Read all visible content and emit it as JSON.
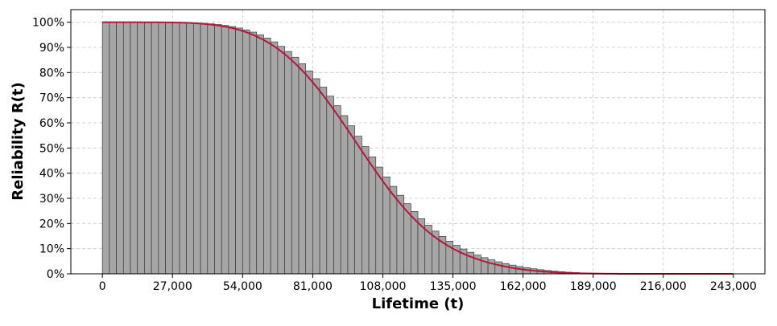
{
  "chart_data": {
    "type": "bar",
    "title": "",
    "xlabel": "Lifetime (t)",
    "ylabel": "Reliability R(t)",
    "xlim": [
      -12150,
      255150
    ],
    "ylim": [
      0,
      1.05
    ],
    "x_ticks": [
      0,
      27000,
      54000,
      81000,
      108000,
      135000,
      162000,
      189000,
      216000,
      243000
    ],
    "x_tick_labels": [
      "0",
      "27,000",
      "54,000",
      "81,000",
      "108,000",
      "135,000",
      "162,000",
      "189,000",
      "216,000",
      "243,000"
    ],
    "y_ticks": [
      0,
      0.1,
      0.2,
      0.3,
      0.4,
      0.5,
      0.6,
      0.7,
      0.8,
      0.9,
      1.0
    ],
    "y_tick_labels": [
      "0%",
      "10%",
      "20%",
      "30%",
      "40%",
      "50%",
      "60%",
      "70%",
      "80%",
      "90%",
      "100%"
    ],
    "grid": true,
    "bar_series": {
      "name": "",
      "bin_width": 2700,
      "x": [
        0,
        2700,
        5400,
        8100,
        10800,
        13500,
        16200,
        18900,
        21600,
        24300,
        27000,
        29700,
        32400,
        35100,
        37800,
        40500,
        43200,
        45900,
        48600,
        51300,
        54000,
        56700,
        59400,
        62100,
        64800,
        67500,
        70200,
        72900,
        75600,
        78300,
        81000,
        83700,
        86400,
        89100,
        91800,
        94500,
        97200,
        99900,
        102600,
        105300,
        108000,
        110700,
        113400,
        116100,
        118800,
        121500,
        124200,
        126900,
        129600,
        132300,
        135000,
        137700,
        140400,
        143100,
        145800,
        148500,
        151200,
        153900,
        156600,
        159300,
        162000,
        164700,
        167400,
        170100,
        172800,
        175500,
        178200,
        180900,
        183600,
        186300,
        189000,
        191700,
        194400,
        197100,
        199800,
        202500,
        205200,
        207900,
        210600,
        213300,
        216000,
        218700,
        221400,
        224100,
        226800,
        229500,
        232200,
        234900,
        237600,
        240300
      ],
      "values": [
        1,
        1,
        1,
        1,
        1,
        1,
        1,
        0.9999,
        0.9998,
        0.9996,
        0.9993,
        0.9988,
        0.998,
        0.997,
        0.9955,
        0.9935,
        0.9908,
        0.9872,
        0.9826,
        0.9768,
        0.9695,
        0.9606,
        0.9499,
        0.937,
        0.9218,
        0.9041,
        0.8838,
        0.8608,
        0.835,
        0.8066,
        0.7755,
        0.7419,
        0.706,
        0.6682,
        0.6288,
        0.5883,
        0.5471,
        0.5057,
        0.4646,
        0.4243,
        0.3852,
        0.3477,
        0.3121,
        0.2788,
        0.2478,
        0.2193,
        0.1933,
        0.1698,
        0.1487,
        0.1299,
        0.1132,
        0.0985,
        0.0856,
        0.0743,
        0.0643,
        0.0555,
        0.0477,
        0.0408,
        0.0346,
        0.0291,
        0.0243,
        0.0201,
        0.0164,
        0.0132,
        0.0105,
        0.0082,
        0.0064,
        0.0049,
        0.0037,
        0.0027,
        0.002,
        0.0014,
        0.001,
        0.0007,
        0.0005,
        0.0003,
        0.0002,
        0.0001,
        0.0001,
        0,
        0,
        0,
        0,
        0,
        0,
        0,
        0,
        0,
        0,
        0
      ],
      "color": "#a6a6a6",
      "edge_color": "#3a3a3a"
    },
    "line_series": {
      "name": "",
      "x": [
        0,
        2700,
        5400,
        8100,
        10800,
        13500,
        16200,
        18900,
        21600,
        24300,
        27000,
        29700,
        32400,
        35100,
        37800,
        40500,
        43200,
        45900,
        48600,
        51300,
        54000,
        56700,
        59400,
        62100,
        64800,
        67500,
        70200,
        72900,
        75600,
        78300,
        81000,
        83700,
        86400,
        89100,
        91800,
        94500,
        97200,
        99900,
        102600,
        105300,
        108000,
        110700,
        113400,
        116100,
        118800,
        121500,
        124200,
        126900,
        129600,
        132300,
        135000,
        137700,
        140400,
        143100,
        145800,
        148500,
        151200,
        153900,
        156600,
        159300,
        162000,
        164700,
        167400,
        170100,
        172800,
        175500,
        178200,
        180900,
        183600,
        186300,
        189000,
        191700,
        194400,
        197100,
        199800,
        202500,
        205200,
        207900,
        210600,
        213300,
        216000,
        218700,
        221400,
        224100,
        226800,
        229500,
        232200,
        234900,
        237600,
        240300,
        243000
      ],
      "values": [
        1,
        1,
        1,
        1,
        1,
        1,
        0.9999,
        0.9999,
        0.9997,
        0.9995,
        0.9991,
        0.9985,
        0.9976,
        0.9963,
        0.9946,
        0.9922,
        0.9891,
        0.985,
        0.9798,
        0.9733,
        0.9652,
        0.9553,
        0.9436,
        0.9296,
        0.9133,
        0.8946,
        0.8732,
        0.8492,
        0.8225,
        0.7932,
        0.7613,
        0.7271,
        0.6907,
        0.6524,
        0.6126,
        0.5717,
        0.5302,
        0.4886,
        0.4474,
        0.4071,
        0.368,
        0.3306,
        0.2952,
        0.2621,
        0.2315,
        0.2034,
        0.1779,
        0.1549,
        0.1344,
        0.1162,
        0.1001,
        0.086,
        0.0736,
        0.0627,
        0.0532,
        0.0449,
        0.0377,
        0.0314,
        0.026,
        0.0213,
        0.0173,
        0.0139,
        0.0111,
        0.0087,
        0.0068,
        0.0052,
        0.0039,
        0.0029,
        0.0021,
        0.0015,
        0.0011,
        0.0008,
        0.0005,
        0.0003,
        0.0002,
        0.0001,
        0.0001,
        0,
        0,
        0,
        0,
        0,
        0,
        0,
        0,
        0,
        0,
        0,
        0,
        0,
        0
      ],
      "color": "#b5173a"
    }
  }
}
